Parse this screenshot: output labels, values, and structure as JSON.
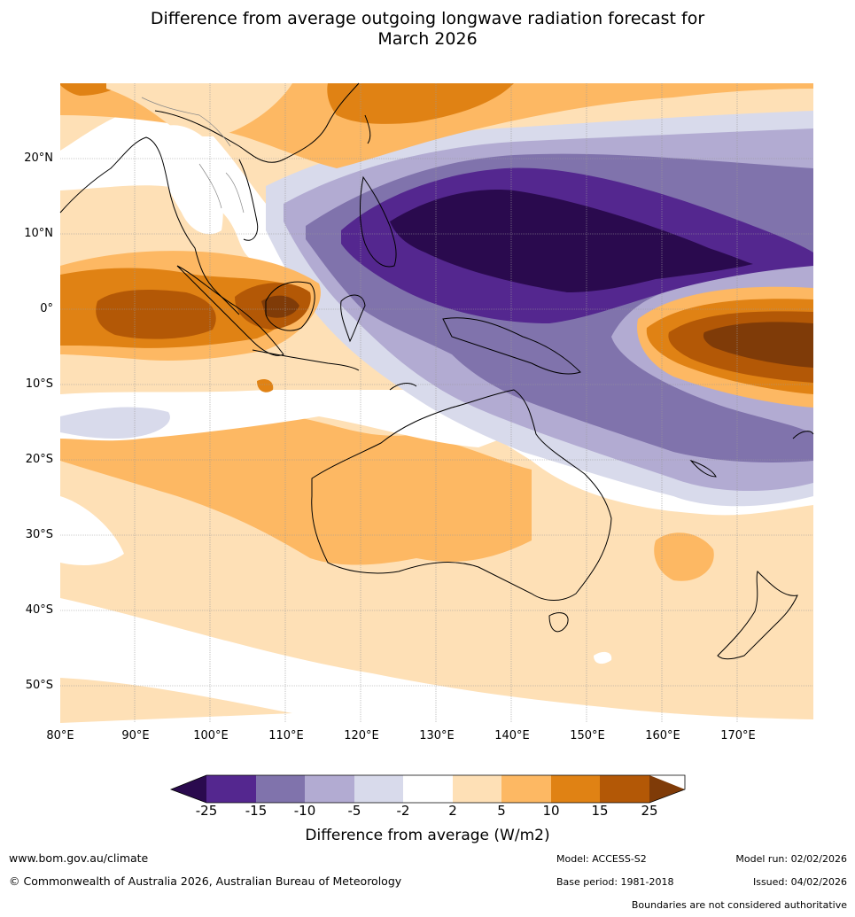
{
  "title": {
    "line1": "Difference from average outgoing longwave radiation forecast for",
    "line2": "March 2026"
  },
  "map": {
    "lat_labels": [
      "20°N",
      "10°N",
      "0°",
      "10°S",
      "20°S",
      "30°S",
      "40°S",
      "50°S"
    ],
    "lon_labels": [
      "80°E",
      "90°E",
      "100°E",
      "110°E",
      "120°E",
      "130°E",
      "140°E",
      "150°E",
      "160°E",
      "170°E"
    ]
  },
  "colorbar": {
    "colors": {
      "lt_-25": "#2a0a4e",
      "-25_-15": "#54278f",
      "-15_-10": "#8073ac",
      "-10_-5": "#b2abd2",
      "-5_-2": "#d8daeb",
      "-2_2": "#ffffff",
      "2_5": "#fee0b6",
      "5_10": "#fdb863",
      "10_15": "#e08214",
      "15_25": "#b35806",
      "gt_25": "#7f3b08"
    },
    "ticks": [
      "-25",
      "-15",
      "-10",
      "-5",
      "-2",
      "2",
      "5",
      "10",
      "15",
      "25"
    ],
    "label": "Difference from average (W/m2)"
  },
  "footer": {
    "website": "www.bom.gov.au/climate",
    "copyright": "© Commonwealth of Australia 2026, Australian Bureau of Meteorology",
    "model": "Model: ACCESS-S2",
    "base_period": "Base period: 1981-2018",
    "model_run": "Model run: 02/02/2026",
    "issued": "Issued: 04/02/2026",
    "disclaimer": "Boundaries are not considered authoritative"
  }
}
